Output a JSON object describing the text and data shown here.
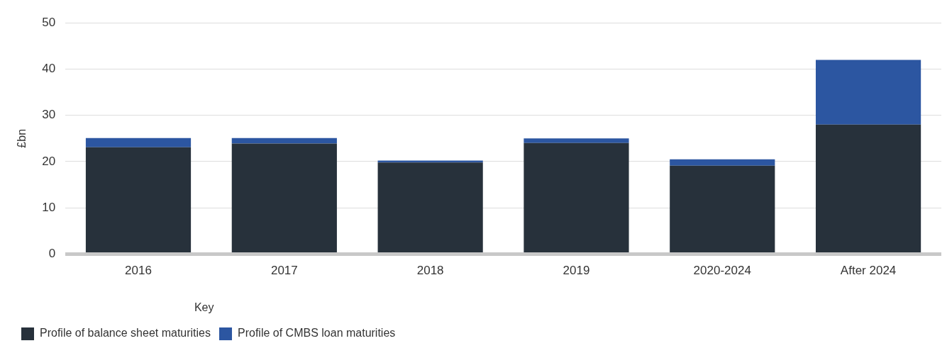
{
  "chart_data": {
    "type": "bar",
    "stacked": true,
    "ylabel": "£bn",
    "legend_title": "Key",
    "legend": "bottom left",
    "grid": "y",
    "categories": [
      "2016",
      "2017",
      "2018",
      "2019",
      "2020-2024",
      "After 2024"
    ],
    "ylim": [
      0,
      50
    ],
    "yticks": [
      0,
      10,
      20,
      30,
      40,
      50
    ],
    "series": [
      {
        "name": "Profile of balance sheet maturities",
        "color": "#27313b",
        "values": [
          23.1,
          23.9,
          19.8,
          24.0,
          19.1,
          28.0
        ]
      },
      {
        "name": "Profile of CMBS loan maturities",
        "color": "#2c56a1",
        "values": [
          2.0,
          1.2,
          0.4,
          1.0,
          1.4,
          14.0
        ]
      }
    ]
  }
}
